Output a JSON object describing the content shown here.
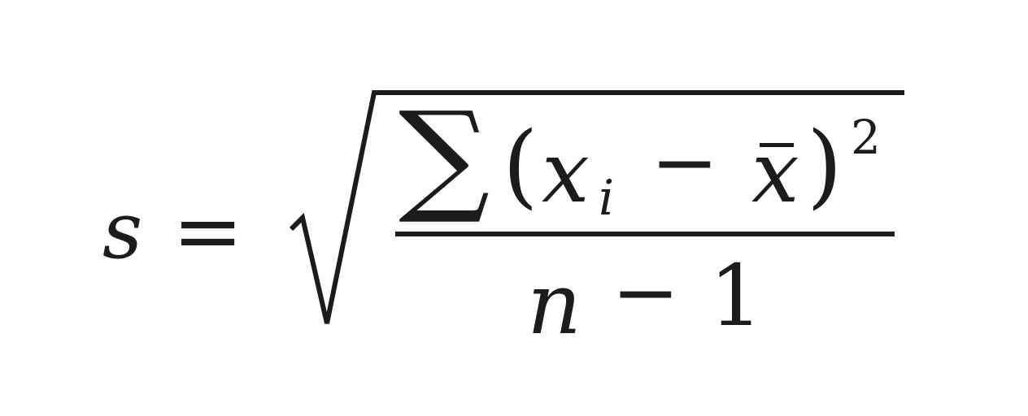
{
  "formula": {
    "lhs": "s",
    "equals": "=",
    "numerator": {
      "sum": "∑",
      "lparen": "(",
      "x": "x",
      "subscript": "i",
      "minus": "−",
      "xbar": "x",
      "rparen": ")",
      "exponent": "2"
    },
    "denominator": {
      "n": "n",
      "minus": "−",
      "one": "1"
    }
  }
}
